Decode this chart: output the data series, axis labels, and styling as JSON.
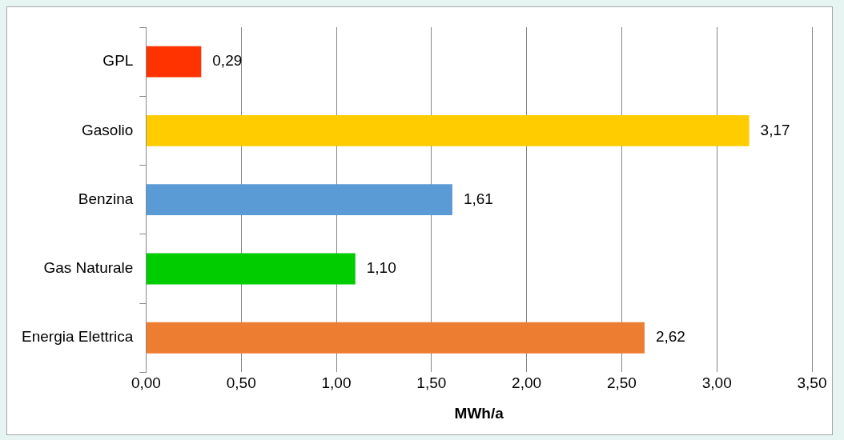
{
  "chart_data": {
    "type": "bar",
    "orientation": "horizontal",
    "xlabel": "MWh/a",
    "categories": [
      "GPL",
      "Gasolio",
      "Benzina",
      "Gas Naturale",
      "Energia Elettrica"
    ],
    "values": [
      0.29,
      3.17,
      1.61,
      1.1,
      2.62
    ],
    "colors": [
      "#ff3300",
      "#ffcc00",
      "#5b9bd5",
      "#00cc00",
      "#ed7d31"
    ],
    "value_labels": [
      "0,29",
      "3,17",
      "1,61",
      "1,10",
      "2,62"
    ],
    "xlim": [
      0,
      3.5
    ],
    "xticks": [
      {
        "value": 0,
        "label": "0,00"
      },
      {
        "value": 0.5,
        "label": "0,50"
      },
      {
        "value": 1,
        "label": "1,00"
      },
      {
        "value": 1.5,
        "label": "1,50"
      },
      {
        "value": 2,
        "label": "2,00"
      },
      {
        "value": 2.5,
        "label": "2,50"
      },
      {
        "value": 3,
        "label": "3,00"
      },
      {
        "value": 3.5,
        "label": "3,50"
      }
    ],
    "grid": "x",
    "legend": false
  }
}
